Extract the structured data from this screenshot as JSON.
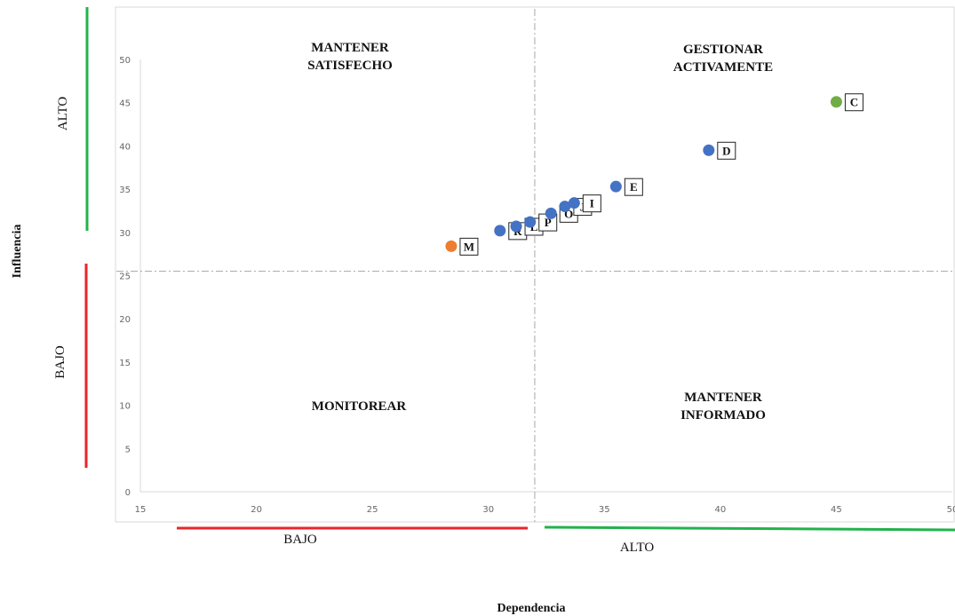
{
  "chart_data": {
    "type": "scatter",
    "xlabel": "Dependencia",
    "ylabel": "Influencia",
    "xlim": [
      15,
      50
    ],
    "ylim": [
      0,
      50
    ],
    "x_ticks": [
      15,
      20,
      25,
      30,
      35,
      40,
      45,
      50
    ],
    "y_ticks": [
      0,
      5,
      10,
      15,
      20,
      25,
      30,
      35,
      40,
      45,
      50
    ],
    "x_divider": 32,
    "y_divider": 25.5,
    "quadrants": {
      "top_left": "MANTENER\nSATISFECHO",
      "top_right": "GESTIONAR\nACTIVAMENTE",
      "bottom_left": "MONITOREAR",
      "bottom_right": "MANTENER\nINFORMADO"
    },
    "x_bands": [
      {
        "label": "BAJO",
        "color": "#e8262a"
      },
      {
        "label": "ALTO",
        "color": "#22b24c"
      }
    ],
    "y_bands": [
      {
        "label": "ALTO",
        "color": "#22b24c"
      },
      {
        "label": "BAJO",
        "color": "#e8262a"
      }
    ],
    "points": [
      {
        "label": "M",
        "x": 28.4,
        "y": 28.4,
        "color": "#ed7d31"
      },
      {
        "label": "R",
        "x": 30.5,
        "y": 30.2,
        "color": "#4472c4"
      },
      {
        "label": "L",
        "x": 31.2,
        "y": 30.7,
        "color": "#4472c4"
      },
      {
        "label": "P",
        "x": 31.8,
        "y": 31.2,
        "color": "#4472c4"
      },
      {
        "label": "O",
        "x": 32.7,
        "y": 32.2,
        "color": "#4472c4"
      },
      {
        "label": "J",
        "x": 33.3,
        "y": 33.0,
        "color": "#4472c4"
      },
      {
        "label": "I",
        "x": 33.7,
        "y": 33.4,
        "color": "#4472c4"
      },
      {
        "label": "E",
        "x": 35.5,
        "y": 35.3,
        "color": "#4472c4"
      },
      {
        "label": "D",
        "x": 39.5,
        "y": 39.5,
        "color": "#4472c4"
      },
      {
        "label": "C",
        "x": 45.0,
        "y": 45.1,
        "color": "#70ad47"
      }
    ]
  }
}
